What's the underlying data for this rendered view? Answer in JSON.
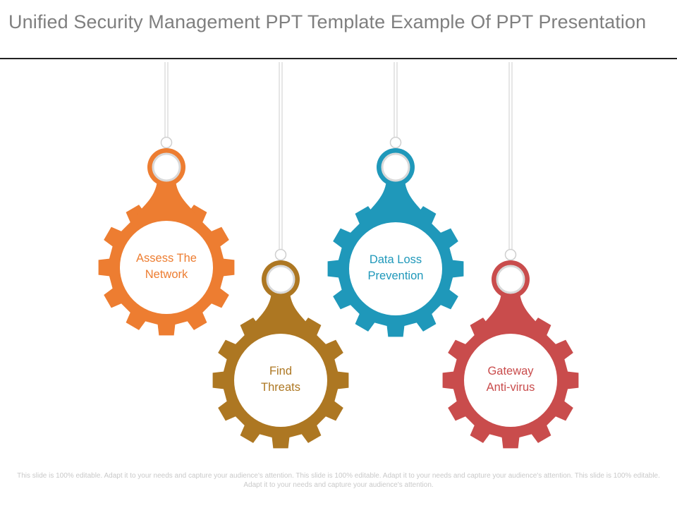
{
  "slide": {
    "title": "Unified Security Management PPT Template Example Of PPT Presentation",
    "footer": "This slide is 100% editable. Adapt it to your needs and capture your audience's attention. This slide is 100% editable. Adapt it to your needs and capture your audience's attention. This slide is 100% editable. Adapt it to your needs and capture your audience's attention."
  },
  "gears": [
    {
      "line1": "Assess The",
      "line2": "Network",
      "color": "#ed7d31"
    },
    {
      "line1": "Find",
      "line2": "Threats",
      "color": "#ad7722"
    },
    {
      "line1": "Data Loss",
      "line2": "Prevention",
      "color": "#1f98ba"
    },
    {
      "line1": "Gateway",
      "line2": "Anti-virus",
      "color": "#c94c4c"
    }
  ],
  "icons": {
    "gear": "gear-icon",
    "hanging_string": "string-icon",
    "ring": "ring-icon"
  }
}
